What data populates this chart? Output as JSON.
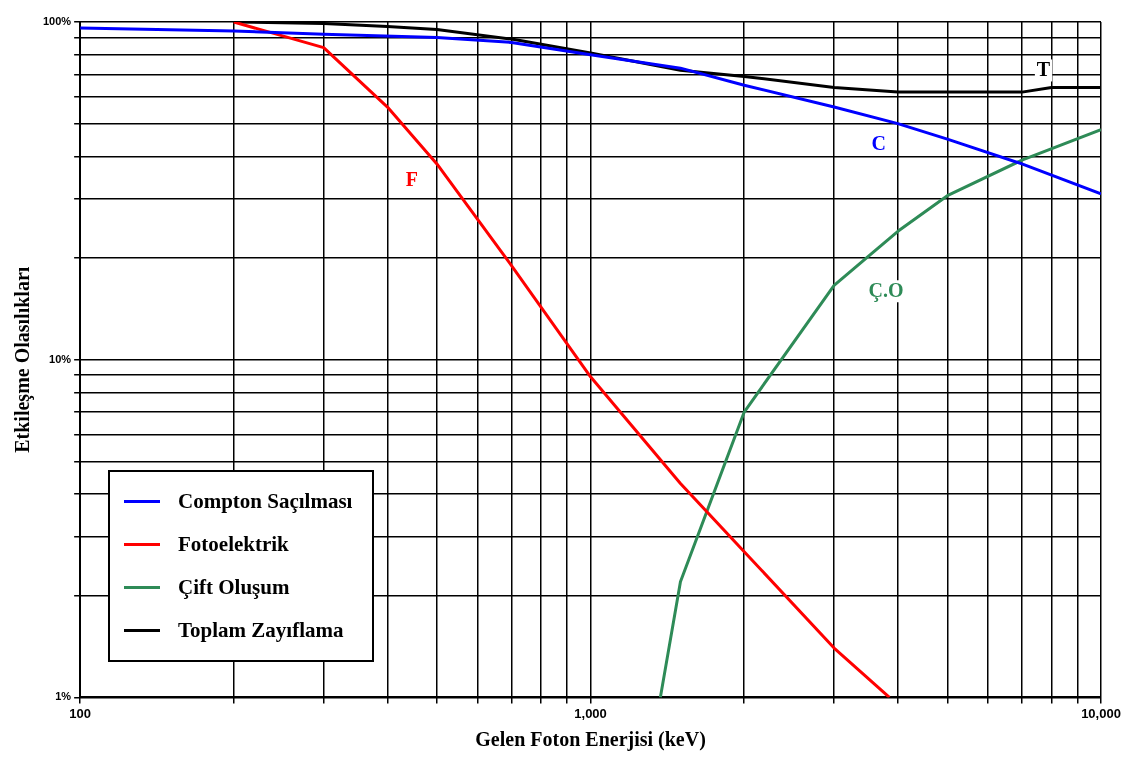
{
  "chart_data": {
    "type": "line",
    "xlabel": "Gelen Foton Enerjisi (keV)",
    "ylabel": "Etkileşme Olasılıkları",
    "log": "xy",
    "grid": true,
    "legend": "bottom left",
    "marker": "none",
    "line_style": "solid",
    "xlim": [
      100,
      10000
    ],
    "ylim": [
      1,
      100
    ],
    "xticks": [
      100,
      {
        "value": 200,
        "label": null
      },
      {
        "value": 300,
        "label": null
      },
      {
        "value": 400,
        "label": null
      },
      {
        "value": 500,
        "label": null
      },
      {
        "value": 600,
        "label": null
      },
      {
        "value": 700,
        "label": null
      },
      {
        "value": 800,
        "label": null
      },
      {
        "value": 900,
        "label": null
      },
      {
        "value": 1000,
        "label": "1,000"
      },
      {
        "value": 2000,
        "label": null
      },
      {
        "value": 3000,
        "label": null
      },
      {
        "value": 4000,
        "label": null
      },
      {
        "value": 5000,
        "label": null
      },
      {
        "value": 6000,
        "label": null
      },
      {
        "value": 7000,
        "label": null
      },
      {
        "value": 8000,
        "label": null
      },
      {
        "value": 9000,
        "label": null
      },
      {
        "value": 10000,
        "label": "10,000"
      }
    ],
    "yticks": [
      {
        "value": 1,
        "label": "1%"
      },
      {
        "value": 2,
        "label": null
      },
      {
        "value": 3,
        "label": null
      },
      {
        "value": 4,
        "label": null
      },
      {
        "value": 5,
        "label": null
      },
      {
        "value": 6,
        "label": null
      },
      {
        "value": 7,
        "label": null
      },
      {
        "value": 8,
        "label": null
      },
      {
        "value": 9,
        "label": null
      },
      {
        "value": 10,
        "label": "10%"
      },
      {
        "value": 20,
        "label": null
      },
      {
        "value": 30,
        "label": null
      },
      {
        "value": 40,
        "label": null
      },
      {
        "value": 50,
        "label": null
      },
      {
        "value": 60,
        "label": null
      },
      {
        "value": 70,
        "label": null
      },
      {
        "value": 80,
        "label": null
      },
      {
        "value": 90,
        "label": null
      },
      {
        "value": 100,
        "label": "100%"
      }
    ],
    "series": [
      {
        "name": "Compton Saçılması",
        "color": "#0000ff",
        "x": [
          100,
          200,
          300,
          500,
          700,
          1000,
          1500,
          2000,
          3000,
          4000,
          5000,
          7000,
          10000
        ],
        "values": [
          96,
          94,
          92,
          90,
          87,
          80,
          73,
          65,
          56,
          50,
          45,
          38,
          31
        ]
      },
      {
        "name": "Fotoelektrik",
        "color": "#ff0000",
        "x": [
          200,
          300,
          400,
          500,
          700,
          1000,
          1500,
          2000,
          3000,
          3850
        ],
        "values": [
          100,
          84,
          56,
          38,
          19,
          8.9,
          4.3,
          2.7,
          1.4,
          1
        ]
      },
      {
        "name": "Çift Oluşum",
        "color": "#2e8b57",
        "x": [
          1370,
          1500,
          2000,
          3000,
          4000,
          5000,
          7000,
          10000
        ],
        "values": [
          1,
          2.2,
          7,
          16.6,
          24,
          30.6,
          39,
          48
        ]
      },
      {
        "name": "Toplam Zayıflama",
        "color": "#000000",
        "x": [
          200,
          300,
          400,
          500,
          700,
          1000,
          1500,
          2000,
          3000,
          4000,
          7000,
          8000,
          10000
        ],
        "values": [
          100,
          99,
          97,
          95,
          89,
          81,
          72,
          69,
          64,
          62,
          62,
          64,
          64
        ]
      }
    ],
    "annotations": [
      "C",
      "F",
      "Ç.O",
      "T"
    ]
  }
}
